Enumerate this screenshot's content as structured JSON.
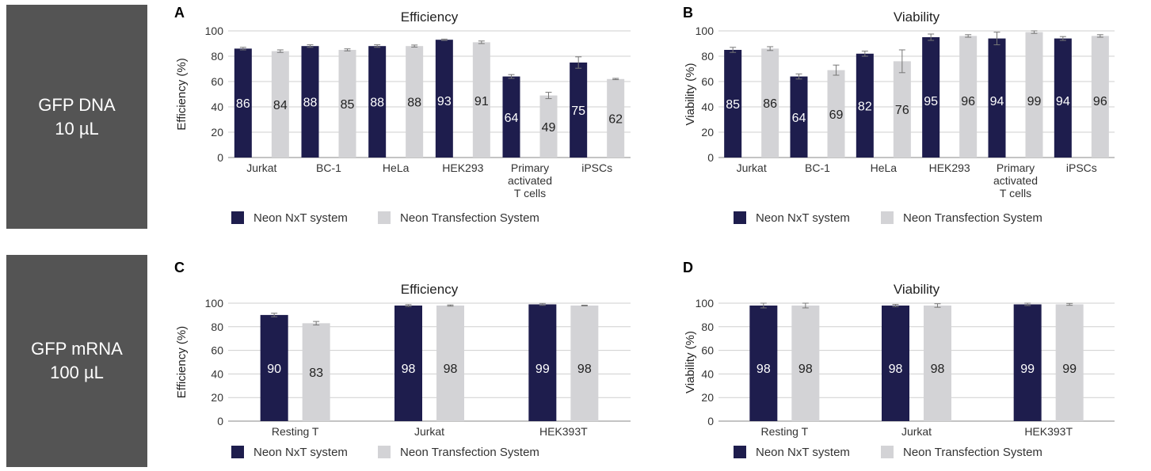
{
  "row_labels": [
    {
      "line1": "GFP DNA",
      "line2": "10 µL"
    },
    {
      "line1": "GFP mRNA",
      "line2": "100 µL"
    }
  ],
  "colors": {
    "nxt": "#1e1d4d",
    "classic": "#d3d3d6",
    "label_bg": "#545454"
  },
  "chart_data": [
    {
      "panel": "A",
      "type": "bar",
      "title": "Efficiency",
      "ylabel": "Efficiency (%)",
      "xlabel": "",
      "ylim": [
        0,
        100
      ],
      "yticks": [
        0,
        20,
        40,
        60,
        80,
        100
      ],
      "grid": true,
      "legend": "bottom",
      "categories": [
        "Jurkat",
        "BC-1",
        "HeLa",
        "HEK293",
        "Primary activated T cells",
        "iPSCs"
      ],
      "category_lines": [
        [
          "Jurkat"
        ],
        [
          "BC-1"
        ],
        [
          "HeLa"
        ],
        [
          "HEK293"
        ],
        [
          "Primary",
          "activated",
          "T cells"
        ],
        [
          "iPSCs"
        ]
      ],
      "series": [
        {
          "name": "Neon NxT system",
          "values": [
            86,
            88,
            88,
            93,
            64,
            75
          ],
          "errors": [
            1,
            1,
            1,
            0.5,
            1.5,
            4.5
          ]
        },
        {
          "name": "Neon Transfection System",
          "values": [
            84,
            85,
            88,
            91,
            49,
            62
          ],
          "errors": [
            1,
            0.8,
            0.8,
            1,
            2.5,
            0.5
          ]
        }
      ]
    },
    {
      "panel": "B",
      "type": "bar",
      "title": "Viability",
      "ylabel": "Viability (%)",
      "xlabel": "",
      "ylim": [
        0,
        100
      ],
      "yticks": [
        0,
        20,
        40,
        60,
        80,
        100
      ],
      "grid": true,
      "legend": "bottom",
      "categories": [
        "Jurkat",
        "BC-1",
        "HeLa",
        "HEK293",
        "Primary activated T cells",
        "iPSCs"
      ],
      "category_lines": [
        [
          "Jurkat"
        ],
        [
          "BC-1"
        ],
        [
          "HeLa"
        ],
        [
          "HEK293"
        ],
        [
          "Primary",
          "activated",
          "T cells"
        ],
        [
          "iPSCs"
        ]
      ],
      "series": [
        {
          "name": "Neon NxT system",
          "values": [
            85,
            64,
            82,
            95,
            94,
            94
          ],
          "errors": [
            2,
            2,
            2,
            2.5,
            5,
            1.5
          ]
        },
        {
          "name": "Neon Transfection System",
          "values": [
            86,
            69,
            76,
            96,
            99,
            96
          ],
          "errors": [
            1.5,
            4,
            9,
            1,
            1,
            1
          ]
        }
      ]
    },
    {
      "panel": "C",
      "type": "bar",
      "title": "Efficiency",
      "ylabel": "Efficiency (%)",
      "xlabel": "",
      "ylim": [
        0,
        100
      ],
      "yticks": [
        0,
        20,
        40,
        60,
        80,
        100
      ],
      "grid": true,
      "legend": "bottom",
      "categories": [
        "Resting T",
        "Jurkat",
        "HEK393T"
      ],
      "category_lines": [
        [
          "Resting T"
        ],
        [
          "Jurkat"
        ],
        [
          "HEK393T"
        ]
      ],
      "series": [
        {
          "name": "Neon NxT system",
          "values": [
            90,
            98,
            99
          ],
          "errors": [
            1.5,
            0.8,
            0.8
          ]
        },
        {
          "name": "Neon Transfection System",
          "values": [
            83,
            98,
            98
          ],
          "errors": [
            1.5,
            0.5,
            0.3
          ]
        }
      ]
    },
    {
      "panel": "D",
      "type": "bar",
      "title": "Viability",
      "ylabel": "Viability (%)",
      "xlabel": "",
      "ylim": [
        0,
        100
      ],
      "yticks": [
        0,
        20,
        40,
        60,
        80,
        100
      ],
      "grid": true,
      "legend": "bottom",
      "categories": [
        "Resting T",
        "Jurkat",
        "HEK393T"
      ],
      "category_lines": [
        [
          "Resting T"
        ],
        [
          "Jurkat"
        ],
        [
          "HEK393T"
        ]
      ],
      "series": [
        {
          "name": "Neon NxT system",
          "values": [
            98,
            98,
            99
          ],
          "errors": [
            2,
            1,
            1
          ]
        },
        {
          "name": "Neon Transfection System",
          "values": [
            98,
            98,
            99
          ],
          "errors": [
            2,
            1.5,
            0.8
          ]
        }
      ]
    }
  ]
}
